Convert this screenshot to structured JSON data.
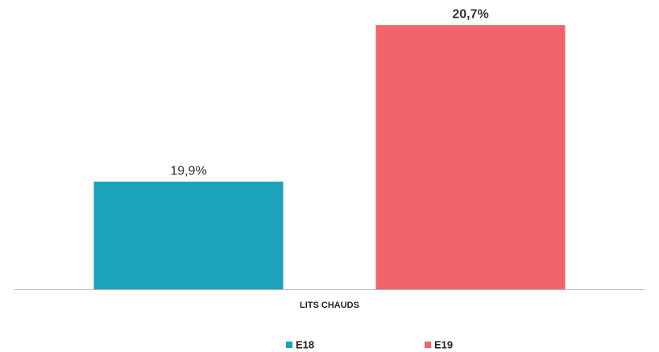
{
  "chart_data": {
    "type": "bar",
    "categories": [
      "LITS CHAUDS"
    ],
    "series": [
      {
        "name": "E18",
        "color": "#1ba3bb",
        "values": [
          19.9
        ],
        "value_labels": [
          "19,9%"
        ]
      },
      {
        "name": "E19",
        "color": "#f2636a",
        "values": [
          20.7
        ],
        "value_labels": [
          "20,7%"
        ]
      }
    ],
    "ylim": [
      19.35,
      20.75
    ],
    "grid": false,
    "legend": "bottom"
  }
}
